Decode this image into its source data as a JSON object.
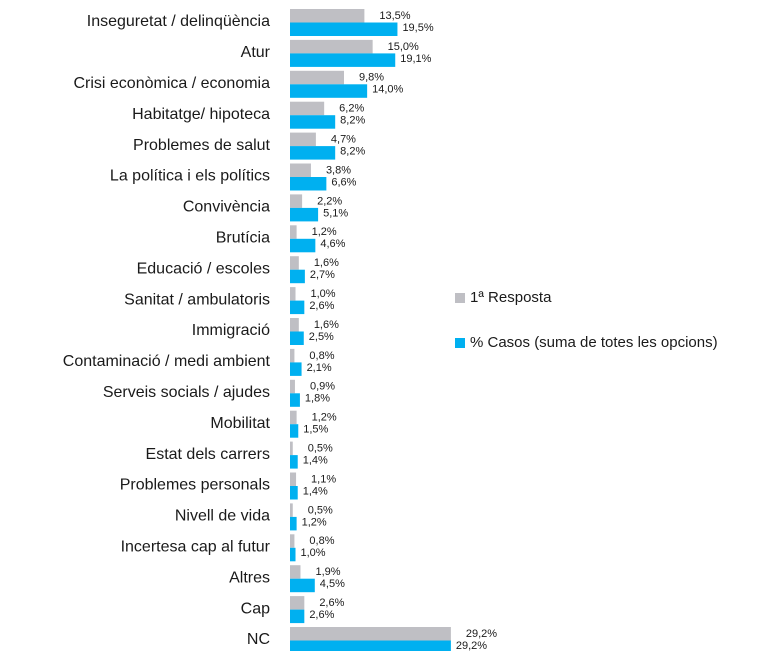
{
  "chart_data": {
    "type": "hbar",
    "categories": [
      "Inseguretat / delinqüència",
      "Atur",
      "Crisi econòmica / economia",
      "Habitatge/ hipoteca",
      "Problemes de salut",
      "La política i els polítics",
      "Convivència",
      "Brutícia",
      "Educació / escoles",
      "Sanitat / ambulatoris",
      "Immigració",
      "Contaminació / medi ambient",
      "Serveis socials / ajudes",
      "Mobilitat",
      "Estat dels carrers",
      "Problemes personals",
      "Nivell de vida",
      "Incertesa cap al futur",
      "Altres",
      "Cap",
      "NC"
    ],
    "series": [
      {
        "name": "1ª Resposta",
        "color": "#bfbfc4",
        "values": [
          13.5,
          15.0,
          9.8,
          6.2,
          4.7,
          3.8,
          2.2,
          1.2,
          1.6,
          1.0,
          1.6,
          0.8,
          0.9,
          1.2,
          0.5,
          1.1,
          0.5,
          0.8,
          1.9,
          2.6,
          29.2
        ],
        "value_labels": [
          "13,5%",
          "15,0%",
          "9,8%",
          "6,2%",
          "4,7%",
          "3,8%",
          "2,2%",
          "1,2%",
          "1,6%",
          "1,0%",
          "1,6%",
          "0,8%",
          "0,9%",
          "1,2%",
          "0,5%",
          "1,1%",
          "0,5%",
          "0,8%",
          "1,9%",
          "2,6%",
          "29,2%"
        ]
      },
      {
        "name": "% Casos (suma de totes les opcions)",
        "color": "#00b0f0",
        "values": [
          19.5,
          19.1,
          14.0,
          8.2,
          8.2,
          6.6,
          5.1,
          4.6,
          2.7,
          2.6,
          2.5,
          2.1,
          1.8,
          1.5,
          1.4,
          1.4,
          1.2,
          1.0,
          4.5,
          2.6,
          29.2
        ],
        "value_labels": [
          "19,5%",
          "19,1%",
          "14,0%",
          "8,2%",
          "8,2%",
          "6,6%",
          "5,1%",
          "4,6%",
          "2,7%",
          "2,6%",
          "2,5%",
          "2,1%",
          "1,8%",
          "1,5%",
          "1,4%",
          "1,4%",
          "1,2%",
          "1,0%",
          "4,5%",
          "2,6%",
          "29,2%"
        ]
      }
    ]
  }
}
